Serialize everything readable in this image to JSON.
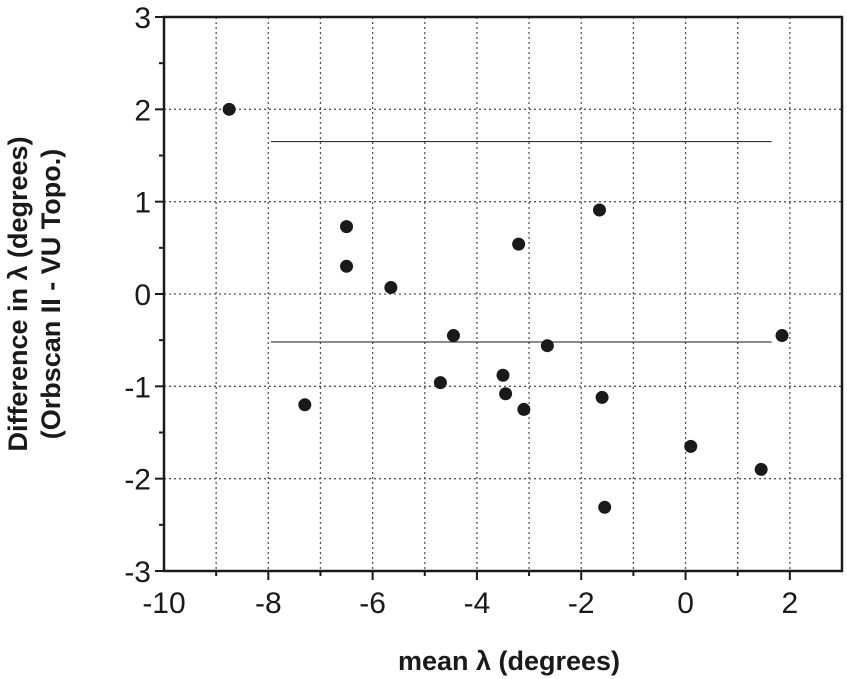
{
  "chart_data": {
    "type": "scatter",
    "xlabel": "mean λ (degrees)",
    "ylabel": [
      "Difference in λ (degrees)",
      "(Orbscan II - VU Topo.)"
    ],
    "xlim": [
      -10,
      3
    ],
    "ylim": [
      -3,
      3
    ],
    "x_ticks": [
      -10,
      -8,
      -6,
      -4,
      -2,
      0,
      2
    ],
    "x_tick_labels": [
      "-10",
      "-8",
      "-6",
      "-4",
      "-2",
      "0",
      "2"
    ],
    "y_ticks": [
      -3,
      -2,
      -1,
      0,
      1,
      2,
      3
    ],
    "y_tick_labels": [
      "-3",
      "-2",
      "-1",
      "0",
      "1",
      "2",
      "3"
    ],
    "grid": true,
    "grid_style": "dotted",
    "colors": {
      "points": "#1a1a1a",
      "lines": "#1a1a1a",
      "grid": "#555555"
    },
    "points": [
      {
        "x": -8.75,
        "y": 2.0
      },
      {
        "x": -7.3,
        "y": -1.2
      },
      {
        "x": -6.5,
        "y": 0.73
      },
      {
        "x": -6.5,
        "y": 0.3
      },
      {
        "x": -5.65,
        "y": 0.07
      },
      {
        "x": -4.7,
        "y": -0.96
      },
      {
        "x": -4.45,
        "y": -0.45
      },
      {
        "x": -3.5,
        "y": -0.88
      },
      {
        "x": -3.45,
        "y": -1.08
      },
      {
        "x": -3.2,
        "y": 0.54
      },
      {
        "x": -3.1,
        "y": -1.25
      },
      {
        "x": -2.65,
        "y": -0.56
      },
      {
        "x": -1.65,
        "y": 0.91
      },
      {
        "x": -1.6,
        "y": -1.12
      },
      {
        "x": -1.55,
        "y": -2.31
      },
      {
        "x": 0.1,
        "y": -1.65
      },
      {
        "x": 1.45,
        "y": -1.9
      },
      {
        "x": 1.85,
        "y": -0.45
      }
    ],
    "reference_lines": [
      {
        "y": 1.65,
        "x_from": -7.95,
        "x_to": 1.65
      },
      {
        "y": -0.52,
        "x_from": -7.95,
        "x_to": 1.65
      }
    ]
  }
}
